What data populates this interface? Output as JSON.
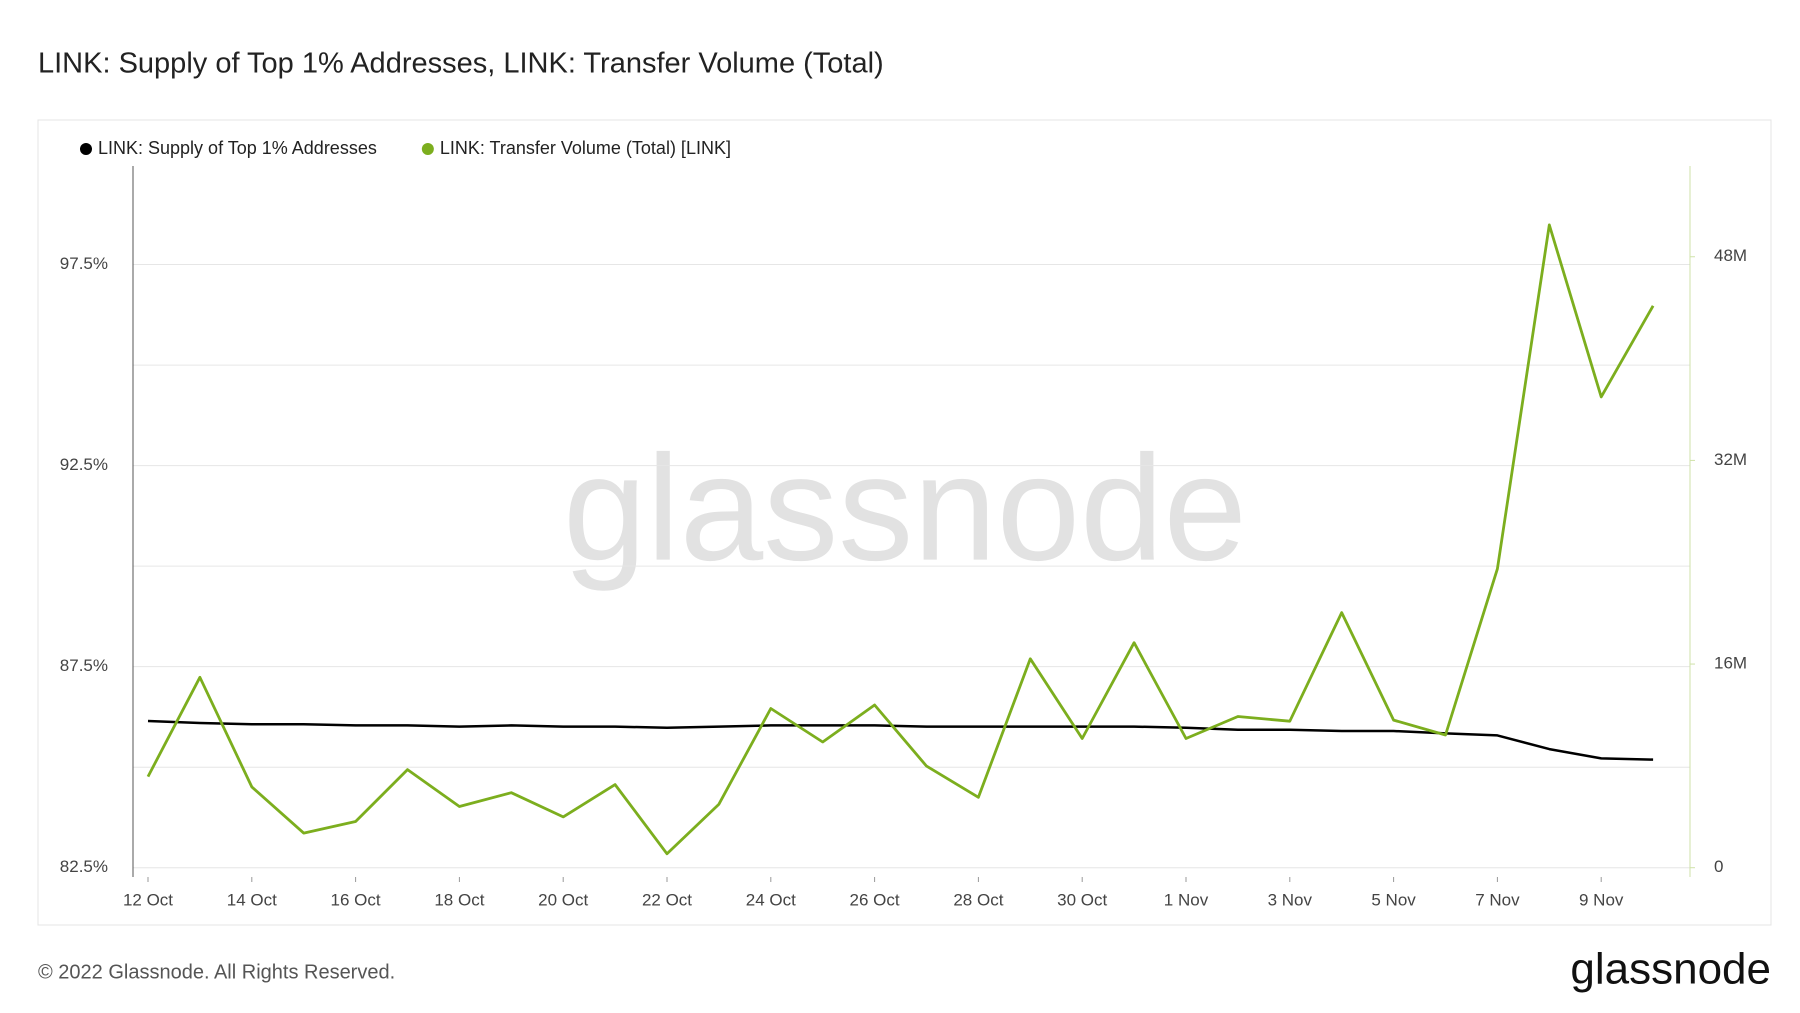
{
  "chart_data": {
    "type": "line",
    "title": "LINK: Supply of Top 1% Addresses, LINK: Transfer Volume (Total)",
    "watermark": "glassnode",
    "footer": "© 2022 Glassnode. All Rights Reserved.",
    "logo": "glassnode",
    "x": [
      "12 Oct",
      "13 Oct",
      "14 Oct",
      "15 Oct",
      "16 Oct",
      "17 Oct",
      "18 Oct",
      "19 Oct",
      "20 Oct",
      "21 Oct",
      "22 Oct",
      "23 Oct",
      "24 Oct",
      "25 Oct",
      "26 Oct",
      "27 Oct",
      "28 Oct",
      "29 Oct",
      "30 Oct",
      "31 Oct",
      "1 Nov",
      "2 Nov",
      "3 Nov",
      "4 Nov",
      "5 Nov",
      "6 Nov",
      "7 Nov",
      "8 Nov",
      "9 Nov",
      "10 Nov"
    ],
    "xticks": [
      "12 Oct",
      "14 Oct",
      "16 Oct",
      "18 Oct",
      "20 Oct",
      "22 Oct",
      "24 Oct",
      "26 Oct",
      "28 Oct",
      "30 Oct",
      "1 Nov",
      "3 Nov",
      "5 Nov",
      "7 Nov",
      "9 Nov"
    ],
    "series": [
      {
        "name": "LINK: Supply of Top 1% Addresses",
        "color": "#000000",
        "values": [
          86.15,
          86.1,
          86.07,
          86.07,
          86.04,
          86.04,
          86.01,
          86.04,
          86.01,
          86.01,
          85.98,
          86.01,
          86.04,
          86.04,
          86.04,
          86.01,
          86.01,
          86.01,
          86.01,
          86.01,
          85.98,
          85.93,
          85.93,
          85.9,
          85.9,
          85.84,
          85.79,
          85.45,
          85.22,
          85.19
        ]
      },
      {
        "name": "LINK: Transfer Volume (Total) [LINK]",
        "color": "#7cae1e",
        "axis": "y2",
        "values": [
          7160000,
          14960000,
          6350000,
          2720000,
          3630000,
          7710000,
          4810000,
          5890000,
          3990000,
          6530000,
          1090000,
          4990000,
          12510000,
          9880000,
          12780000,
          7980000,
          5530000,
          16410000,
          10150000,
          17680000,
          10150000,
          11880000,
          11510000,
          20040000,
          11600000,
          10430000,
          23480000,
          50500000,
          36990000,
          44150000
        ]
      }
    ],
    "ylim": [
      82.27,
      99.95
    ],
    "yticks": [
      {
        "value": 82.5,
        "label": "82.5%"
      },
      {
        "value": 85,
        "label": null
      },
      {
        "value": 87.5,
        "label": "87.5%"
      },
      {
        "value": 90,
        "label": null
      },
      {
        "value": 92.5,
        "label": "92.5%"
      },
      {
        "value": 95,
        "label": null
      },
      {
        "value": 97.5,
        "label": "97.5%"
      }
    ],
    "y2lim": [
      -730000,
      55130000
    ],
    "y2ticks": [
      {
        "value": 0,
        "label": "0"
      },
      {
        "value": 8000000,
        "label": null
      },
      {
        "value": 16000000,
        "label": "16M"
      },
      {
        "value": 24000000,
        "label": null
      },
      {
        "value": 32000000,
        "label": "32M"
      },
      {
        "value": 40000000,
        "label": null
      },
      {
        "value": 48000000,
        "label": "48M"
      }
    ],
    "grid": true
  }
}
